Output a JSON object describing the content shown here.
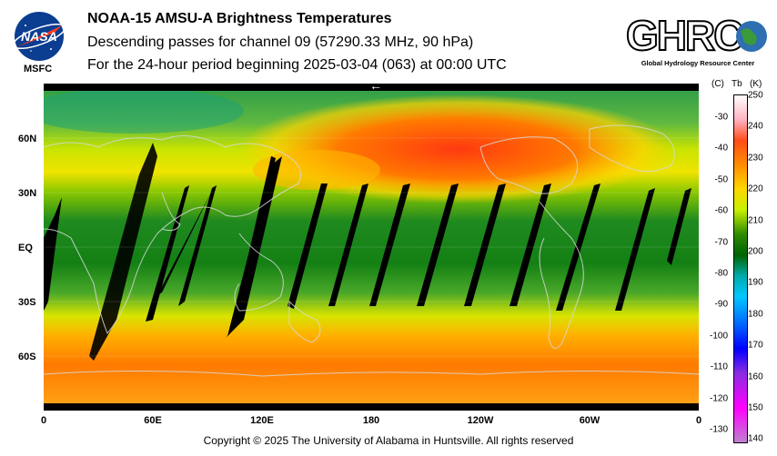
{
  "header": {
    "title": "NOAA-15 AMSU-A Brightness Temperatures",
    "subtitle": "Descending passes for channel 09 (57290.33 MHz, 90 hPa)",
    "period": "For the 24-hour period beginning 2025-03-04 (063) at 00:00 UTC"
  },
  "logos": {
    "nasa_text": "NASA",
    "msfc_text": "MSFC",
    "ghrc_text": "GHRC",
    "ghrc_subtitle": "Global Hydrology Resource Center"
  },
  "map": {
    "longitude_ticks": [
      "0",
      "60E",
      "120E",
      "180",
      "120W",
      "60W",
      "0"
    ],
    "latitude_ticks": [
      "60N",
      "30N",
      "EQ",
      "30S",
      "60S"
    ],
    "direction_marker": "←"
  },
  "colorbar": {
    "celsius_label": "(C)",
    "tb_label": "Tb",
    "kelvin_label": "(K)",
    "kelvin_ticks": [
      "250",
      "240",
      "230",
      "220",
      "210",
      "200",
      "190",
      "180",
      "170",
      "160",
      "150",
      "140"
    ],
    "celsius_ticks": [
      "-30",
      "-40",
      "-50",
      "-60",
      "-70",
      "-80",
      "-90",
      "-100",
      "-110",
      "-120",
      "-130"
    ],
    "colors": [
      "#ffffff",
      "#ffb3c2",
      "#ff4d1a",
      "#ff8c00",
      "#ffd700",
      "#c8f000",
      "#2e8b00",
      "#006400",
      "#00aaaa",
      "#00c8ff",
      "#0066ff",
      "#0000ff",
      "#8a2be2",
      "#ff00ff",
      "#c080d0"
    ]
  },
  "footer": {
    "copyright": "Copyright © 2025 The University of Alabama in Huntsville.  All rights reserved"
  }
}
